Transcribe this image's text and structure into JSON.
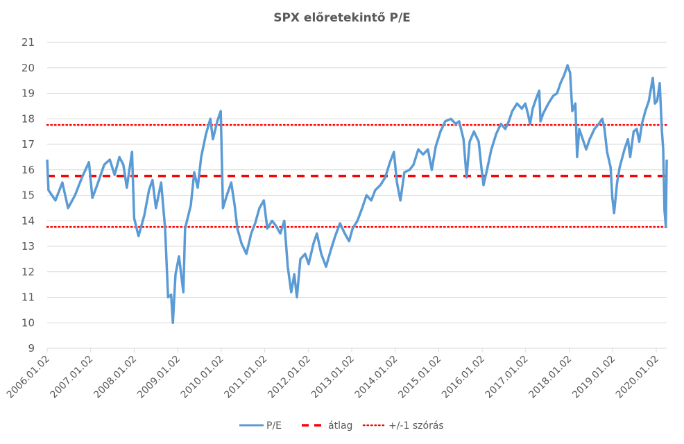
{
  "chart_data": {
    "type": "line",
    "title": "SPX előretekintő P/E",
    "xlabel": "",
    "ylabel": "",
    "ylim": [
      9,
      21
    ],
    "yticks": [
      "9",
      "10",
      "11",
      "12",
      "13",
      "14",
      "15",
      "16",
      "17",
      "18",
      "19",
      "20",
      "21"
    ],
    "xlim": [
      2006.0,
      2020.24
    ],
    "xticks": [
      {
        "label": "2006.01.02",
        "value": 2006.0
      },
      {
        "label": "2007.01.02",
        "value": 2007.0
      },
      {
        "label": "2008.01.02",
        "value": 2008.0
      },
      {
        "label": "2009.01.02",
        "value": 2009.0
      },
      {
        "label": "2010.01.02",
        "value": 2010.0
      },
      {
        "label": "2011.01.02",
        "value": 2011.0
      },
      {
        "label": "2012.01.02",
        "value": 2012.0
      },
      {
        "label": "2013.01.02",
        "value": 2013.0
      },
      {
        "label": "2014.01.02",
        "value": 2014.0
      },
      {
        "label": "2015.01.02",
        "value": 2015.0
      },
      {
        "label": "2016.01.02",
        "value": 2016.0
      },
      {
        "label": "2017.01.02",
        "value": 2017.0
      },
      {
        "label": "2018.01.02",
        "value": 2018.0
      },
      {
        "label": "2019.01.02",
        "value": 2019.0
      },
      {
        "label": "2020.01.02",
        "value": 2020.0
      }
    ],
    "grid": "horizontal",
    "legend_position": "bottom",
    "series": [
      {
        "name": "P/E",
        "color": "#5B9BD5",
        "style": "solid",
        "x": [
          2006.0,
          2006.03,
          2006.19,
          2006.35,
          2006.48,
          2006.64,
          2006.8,
          2006.96,
          2007.04,
          2007.15,
          2007.31,
          2007.44,
          2007.55,
          2007.66,
          2007.75,
          2007.83,
          2007.95,
          2008.0,
          2008.1,
          2008.23,
          2008.34,
          2008.42,
          2008.5,
          2008.62,
          2008.71,
          2008.78,
          2008.85,
          2008.89,
          2008.95,
          2009.03,
          2009.13,
          2009.17,
          2009.3,
          2009.38,
          2009.46,
          2009.54,
          2009.65,
          2009.75,
          2009.81,
          2009.91,
          2009.99,
          2010.04,
          2010.13,
          2010.23,
          2010.31,
          2010.37,
          2010.47,
          2010.58,
          2010.69,
          2010.78,
          2010.88,
          2010.98,
          2011.06,
          2011.17,
          2011.26,
          2011.36,
          2011.45,
          2011.53,
          2011.61,
          2011.68,
          2011.74,
          2011.82,
          2011.93,
          2012.01,
          2012.12,
          2012.2,
          2012.3,
          2012.41,
          2012.51,
          2012.62,
          2012.73,
          2012.84,
          2012.94,
          2013.02,
          2013.13,
          2013.24,
          2013.34,
          2013.45,
          2013.54,
          2013.66,
          2013.77,
          2013.88,
          2013.97,
          2014.04,
          2014.12,
          2014.21,
          2014.33,
          2014.42,
          2014.53,
          2014.64,
          2014.75,
          2014.84,
          2014.93,
          2015.04,
          2015.15,
          2015.28,
          2015.39,
          2015.47,
          2015.57,
          2015.64,
          2015.71,
          2015.81,
          2015.92,
          2015.98,
          2016.03,
          2016.11,
          2016.21,
          2016.32,
          2016.43,
          2016.53,
          2016.61,
          2016.69,
          2016.8,
          2016.91,
          2016.99,
          2017.05,
          2017.1,
          2017.16,
          2017.24,
          2017.31,
          2017.34,
          2017.4,
          2017.52,
          2017.63,
          2017.72,
          2017.8,
          2017.88,
          2017.96,
          2018.02,
          2018.07,
          2018.14,
          2018.18,
          2018.23,
          2018.31,
          2018.39,
          2018.47,
          2018.58,
          2018.68,
          2018.76,
          2018.81,
          2018.87,
          2018.95,
          2018.99,
          2019.03,
          2019.1,
          2019.16,
          2019.27,
          2019.35,
          2019.4,
          2019.48,
          2019.55,
          2019.61,
          2019.67,
          2019.75,
          2019.83,
          2019.92,
          2019.97,
          2020.02,
          2020.08,
          2020.13,
          2020.16,
          2020.19,
          2020.22,
          2020.24
        ],
        "values": [
          16.4,
          15.2,
          14.8,
          15.5,
          14.5,
          15.0,
          15.7,
          16.3,
          14.9,
          15.4,
          16.2,
          16.4,
          15.8,
          16.5,
          16.2,
          15.3,
          16.7,
          14.1,
          13.4,
          14.2,
          15.2,
          15.6,
          14.5,
          15.5,
          13.7,
          11.0,
          11.1,
          10.0,
          11.9,
          12.6,
          11.2,
          13.7,
          14.6,
          15.9,
          15.3,
          16.5,
          17.4,
          18.0,
          17.2,
          17.9,
          18.3,
          14.5,
          15.0,
          15.5,
          14.6,
          13.7,
          13.1,
          12.7,
          13.5,
          13.9,
          14.5,
          14.8,
          13.7,
          14.0,
          13.8,
          13.5,
          14.0,
          12.2,
          11.2,
          11.9,
          11.0,
          12.5,
          12.7,
          12.3,
          13.1,
          13.5,
          12.7,
          12.2,
          12.8,
          13.4,
          13.9,
          13.5,
          13.2,
          13.7,
          14.0,
          14.5,
          15.0,
          14.8,
          15.2,
          15.4,
          15.7,
          16.3,
          16.7,
          15.5,
          14.8,
          15.9,
          16.0,
          16.2,
          16.8,
          16.6,
          16.8,
          16.0,
          16.9,
          17.5,
          17.9,
          18.0,
          17.8,
          17.9,
          17.2,
          15.7,
          17.1,
          17.5,
          17.1,
          16.1,
          15.4,
          16.0,
          16.8,
          17.4,
          17.8,
          17.6,
          17.9,
          18.3,
          18.6,
          18.4,
          18.6,
          18.2,
          17.8,
          18.4,
          18.8,
          19.1,
          17.9,
          18.2,
          18.6,
          18.9,
          19.0,
          19.4,
          19.7,
          20.1,
          19.8,
          18.3,
          18.6,
          16.5,
          17.6,
          17.2,
          16.8,
          17.2,
          17.6,
          17.8,
          18.0,
          17.6,
          16.7,
          16.1,
          14.9,
          14.3,
          15.5,
          16.1,
          16.8,
          17.2,
          16.5,
          17.5,
          17.6,
          17.1,
          17.8,
          18.3,
          18.7,
          19.6,
          18.6,
          18.7,
          19.4,
          17.5,
          16.8,
          14.4,
          13.8,
          16.4
        ]
      },
      {
        "name": "átlag",
        "color": "#FF0000",
        "style": "dashed",
        "value": 15.76
      },
      {
        "name": "+/-1 szórás",
        "color": "#FF0000",
        "style": "dotted",
        "values_band": [
          13.76,
          17.76
        ]
      }
    ],
    "legend": [
      "P/E",
      "átlag",
      "+/-1 szórás"
    ]
  }
}
